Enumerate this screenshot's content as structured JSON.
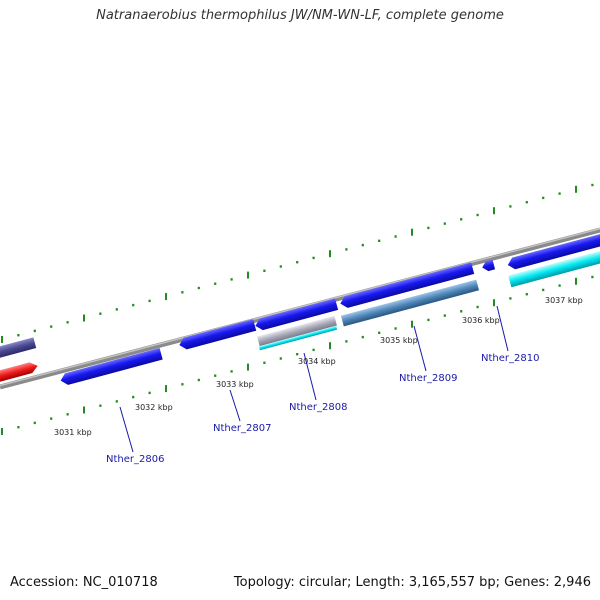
{
  "header": {
    "title": "Natranaerobius thermophilus JW/NM-WN-LF, complete genome"
  },
  "footer": {
    "accession": "Accession: NC_010718",
    "summary": "Topology: circular; Length: 3,165,557 bp; Genes: 2,946"
  },
  "kbp_labels": [
    "3031 kbp",
    "3032 kbp",
    "3033 kbp",
    "3034 kbp",
    "3035 kbp",
    "3036 kbp",
    "3037 kbp"
  ],
  "gene_labels": [
    "Nther_2806",
    "Nther_2807",
    "Nther_2808",
    "Nther_2809",
    "Nther_2810"
  ],
  "colors": {
    "backbone": "#8a8a8a",
    "gene_blue": "#1414e0",
    "gene_slate": "#4a4890",
    "gene_red": "#e81a1a",
    "gene_cyan": "#00e5ee",
    "gene_steel": "#4f86b8",
    "gene_gray": "#a8a8b8",
    "tick_green": "#228b22",
    "label_blue": "#1a1aa8"
  }
}
